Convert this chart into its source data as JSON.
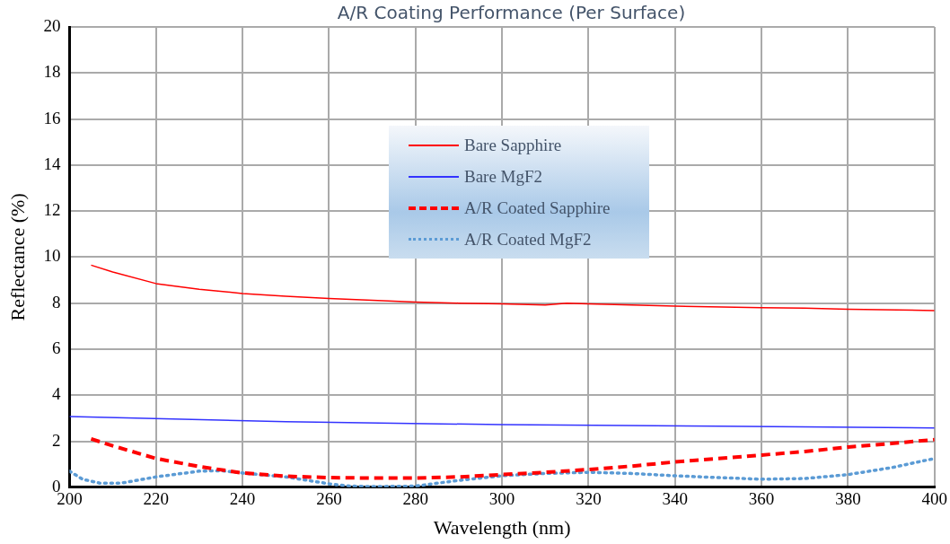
{
  "chart_data": {
    "type": "line",
    "title": "A/R Coating Performance (Per Surface)",
    "xlabel": "Wavelength (nm)",
    "ylabel": "Reflectance (%)",
    "xlim": [
      200,
      400
    ],
    "xticks": [
      200,
      220,
      240,
      260,
      280,
      300,
      320,
      340,
      360,
      380,
      400
    ],
    "ylim": [
      0,
      20
    ],
    "yticks": [
      0,
      2,
      4,
      6,
      8,
      10,
      12,
      14,
      16,
      18,
      20
    ],
    "grid": true,
    "legend": "top",
    "marker": "none",
    "series": [
      {
        "name": "Bare Sapphire",
        "color": "#ff0000",
        "line_style": "solid",
        "x": [
          205,
          210,
          220,
          230,
          240,
          250,
          260,
          270,
          280,
          290,
          300,
          310,
          315,
          320,
          340,
          360,
          370,
          380,
          400
        ],
        "values": [
          9.65,
          9.35,
          8.85,
          8.6,
          8.42,
          8.3,
          8.2,
          8.12,
          8.05,
          8.0,
          7.97,
          7.92,
          8.0,
          7.97,
          7.87,
          7.8,
          7.78,
          7.73,
          7.68
        ]
      },
      {
        "name": "Bare MgF2",
        "color": "#3333ff",
        "line_style": "solid",
        "x": [
          200,
          250,
          300,
          350,
          400
        ],
        "values": [
          3.07,
          2.85,
          2.72,
          2.65,
          2.58
        ]
      },
      {
        "name": "A/R Coated Sapphire",
        "color": "#ff0000",
        "line_style": "dashed",
        "x": [
          205,
          210,
          220,
          230,
          240,
          250,
          260,
          270,
          280,
          290,
          300,
          310,
          320,
          330,
          340,
          350,
          360,
          370,
          380,
          390,
          400
        ],
        "values": [
          2.1,
          1.8,
          1.25,
          0.9,
          0.62,
          0.48,
          0.42,
          0.4,
          0.4,
          0.45,
          0.55,
          0.65,
          0.77,
          0.92,
          1.1,
          1.25,
          1.4,
          1.55,
          1.75,
          1.9,
          2.07
        ]
      },
      {
        "name": "A/R Coated MgF2",
        "color": "#5b9bd5",
        "line_style": "dotted",
        "x": [
          200,
          203,
          207,
          212,
          220,
          230,
          235,
          240,
          250,
          260,
          265,
          270,
          280,
          290,
          300,
          310,
          320,
          330,
          340,
          350,
          360,
          370,
          380,
          390,
          400
        ],
        "values": [
          0.7,
          0.35,
          0.18,
          0.18,
          0.45,
          0.7,
          0.72,
          0.62,
          0.45,
          0.15,
          0.05,
          0.03,
          0.05,
          0.3,
          0.5,
          0.6,
          0.65,
          0.6,
          0.5,
          0.42,
          0.35,
          0.38,
          0.55,
          0.85,
          1.25
        ]
      }
    ]
  }
}
